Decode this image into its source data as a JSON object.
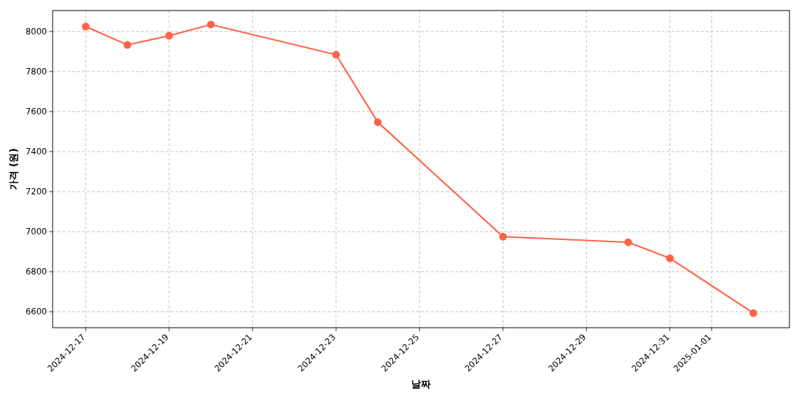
{
  "chart_data": {
    "type": "line",
    "xlabel": "날짜",
    "ylabel": "가격 (원)",
    "x": [
      "2024-12-17",
      "2024-12-18",
      "2024-12-19",
      "2024-12-20",
      "2024-12-23",
      "2024-12-24",
      "2024-12-27",
      "2024-12-30",
      "2024-12-31",
      "2025-01-02"
    ],
    "series": [
      {
        "color": "#ff6347",
        "values": [
          8025,
          7933,
          7979,
          8035,
          7884,
          7547,
          6975,
          6947,
          6867,
          6593
        ]
      }
    ],
    "xlim": [
      "2024-12-16T05:00",
      "2025-01-02T20:45"
    ],
    "xticks": [
      "2024-12-17",
      "2024-12-19",
      "2024-12-21",
      "2024-12-23",
      "2024-12-25",
      "2024-12-27",
      "2024-12-29",
      "2024-12-31",
      "2025-01-01"
    ],
    "ylim": [
      6520,
      8105
    ],
    "yticks": [
      6600,
      6800,
      7000,
      7200,
      7400,
      7600,
      7800,
      8000
    ],
    "grid": true,
    "marker": "circle",
    "line_style": "solid"
  }
}
